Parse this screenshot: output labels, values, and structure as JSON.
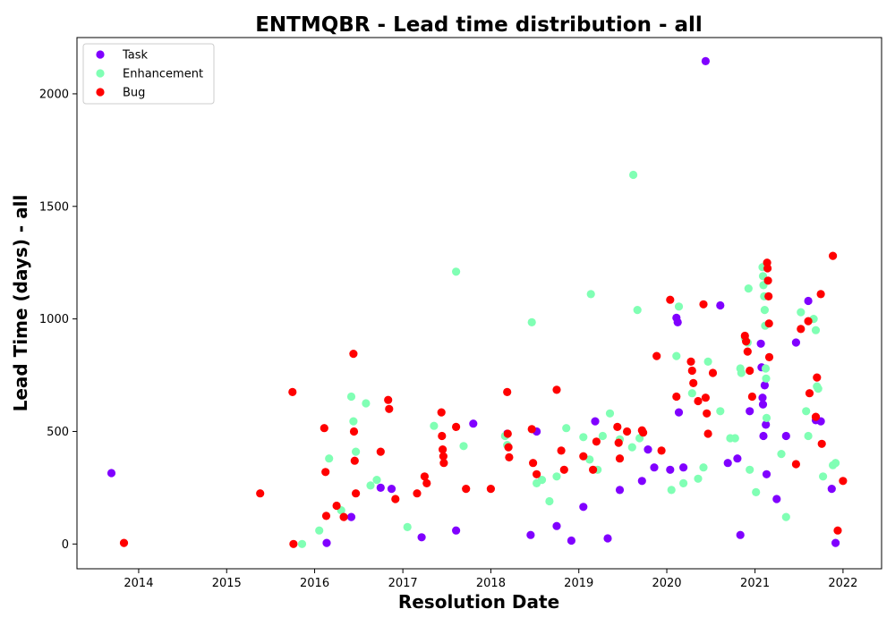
{
  "chart_data": {
    "type": "scatter",
    "title": "ENTMQBR - Lead time distribution - all",
    "xlabel": "Resolution Date",
    "ylabel": "Lead Time (days) - all",
    "x_ticks": [
      "2014",
      "2015",
      "2016",
      "2017",
      "2018",
      "2019",
      "2020",
      "2021",
      "2022"
    ],
    "y_ticks": [
      "0",
      "500",
      "1000",
      "1500",
      "2000"
    ],
    "xlim": [
      "2013-04-20",
      "2022-06-10"
    ],
    "ylim": [
      -110,
      2250
    ],
    "grid": false,
    "legend_position": "top-left",
    "series": [
      {
        "name": "Task",
        "color": "#8000ff",
        "points": [
          [
            "2013-09-10",
            315
          ],
          [
            "2016-02-20",
            5
          ],
          [
            "2016-06-01",
            120
          ],
          [
            "2016-10-01",
            250
          ],
          [
            "2016-11-15",
            245
          ],
          [
            "2017-03-20",
            30
          ],
          [
            "2017-08-10",
            60
          ],
          [
            "2017-10-20",
            535
          ],
          [
            "2018-03-10",
            490
          ],
          [
            "2018-06-15",
            40
          ],
          [
            "2018-07-10",
            500
          ],
          [
            "2018-10-01",
            80
          ],
          [
            "2019-01-20",
            165
          ],
          [
            "2019-03-10",
            545
          ],
          [
            "2019-06-20",
            240
          ],
          [
            "2019-09-20",
            280
          ],
          [
            "2019-10-15",
            420
          ],
          [
            "2019-11-10",
            340
          ],
          [
            "2020-01-15",
            330
          ],
          [
            "2020-02-10",
            1005
          ],
          [
            "2020-02-15",
            985
          ],
          [
            "2020-02-20",
            585
          ],
          [
            "2020-03-10",
            340
          ],
          [
            "2020-06-10",
            2145
          ],
          [
            "2020-08-10",
            1060
          ],
          [
            "2020-09-10",
            360
          ],
          [
            "2020-10-20",
            380
          ],
          [
            "2020-12-10",
            590
          ],
          [
            "2021-01-25",
            890
          ],
          [
            "2021-01-28",
            785
          ],
          [
            "2021-02-01",
            650
          ],
          [
            "2021-02-03",
            620
          ],
          [
            "2021-02-05",
            480
          ],
          [
            "2021-02-10",
            705
          ],
          [
            "2021-02-15",
            530
          ],
          [
            "2021-02-18",
            310
          ],
          [
            "2021-04-01",
            200
          ],
          [
            "2021-05-10",
            480
          ],
          [
            "2021-06-20",
            895
          ],
          [
            "2021-08-10",
            1080
          ],
          [
            "2021-09-10",
            550
          ],
          [
            "2021-10-01",
            545
          ],
          [
            "2021-11-15",
            245
          ],
          [
            "2021-12-01",
            5
          ],
          [
            "2020-11-01",
            40
          ],
          [
            "2019-05-01",
            25
          ],
          [
            "2018-12-01",
            15
          ]
        ]
      },
      {
        "name": "Enhancement",
        "color": "#80ffb4",
        "points": [
          [
            "2015-11-10",
            0
          ],
          [
            "2016-01-20",
            60
          ],
          [
            "2016-03-01",
            380
          ],
          [
            "2016-04-20",
            150
          ],
          [
            "2016-06-01",
            655
          ],
          [
            "2016-06-10",
            545
          ],
          [
            "2016-06-20",
            410
          ],
          [
            "2016-08-01",
            625
          ],
          [
            "2016-08-20",
            260
          ],
          [
            "2016-09-15",
            285
          ],
          [
            "2017-01-20",
            75
          ],
          [
            "2017-05-10",
            525
          ],
          [
            "2017-08-10",
            1210
          ],
          [
            "2017-09-10",
            435
          ],
          [
            "2018-03-01",
            480
          ],
          [
            "2018-03-10",
            440
          ],
          [
            "2018-06-20",
            985
          ],
          [
            "2018-07-10",
            270
          ],
          [
            "2018-08-01",
            285
          ],
          [
            "2018-10-01",
            300
          ],
          [
            "2018-11-10",
            515
          ],
          [
            "2019-01-20",
            475
          ],
          [
            "2019-02-15",
            375
          ],
          [
            "2019-02-20",
            1110
          ],
          [
            "2019-04-10",
            480
          ],
          [
            "2019-05-10",
            580
          ],
          [
            "2019-06-20",
            465
          ],
          [
            "2019-08-10",
            430
          ],
          [
            "2019-08-15",
            1640
          ],
          [
            "2019-09-01",
            1040
          ],
          [
            "2019-09-10",
            470
          ],
          [
            "2020-01-20",
            240
          ],
          [
            "2020-02-10",
            835
          ],
          [
            "2020-02-20",
            1055
          ],
          [
            "2020-03-10",
            270
          ],
          [
            "2020-04-15",
            670
          ],
          [
            "2020-05-10",
            290
          ],
          [
            "2020-06-01",
            340
          ],
          [
            "2020-06-20",
            810
          ],
          [
            "2020-08-10",
            590
          ],
          [
            "2020-10-10",
            470
          ],
          [
            "2020-11-01",
            780
          ],
          [
            "2020-11-05",
            760
          ],
          [
            "2020-11-20",
            915
          ],
          [
            "2020-12-01",
            895
          ],
          [
            "2020-12-05",
            1135
          ],
          [
            "2020-12-10",
            330
          ],
          [
            "2021-01-05",
            230
          ],
          [
            "2021-02-01",
            1230
          ],
          [
            "2021-02-03",
            1190
          ],
          [
            "2021-02-05",
            1150
          ],
          [
            "2021-02-08",
            1100
          ],
          [
            "2021-02-10",
            1040
          ],
          [
            "2021-02-12",
            970
          ],
          [
            "2021-02-14",
            780
          ],
          [
            "2021-02-16",
            735
          ],
          [
            "2021-02-18",
            560
          ],
          [
            "2021-04-20",
            400
          ],
          [
            "2021-05-10",
            120
          ],
          [
            "2021-07-10",
            1030
          ],
          [
            "2021-08-01",
            590
          ],
          [
            "2021-08-10",
            480
          ],
          [
            "2021-09-01",
            1000
          ],
          [
            "2021-09-10",
            950
          ],
          [
            "2021-09-15",
            700
          ],
          [
            "2021-09-20",
            690
          ],
          [
            "2021-10-10",
            300
          ],
          [
            "2021-11-20",
            350
          ],
          [
            "2021-12-01",
            360
          ],
          [
            "2020-09-20",
            470
          ],
          [
            "2019-03-20",
            330
          ],
          [
            "2018-09-01",
            190
          ]
        ]
      },
      {
        "name": "Bug",
        "color": "#ff0000",
        "points": [
          [
            "2013-11-01",
            5
          ],
          [
            "2015-05-20",
            225
          ],
          [
            "2015-10-01",
            675
          ],
          [
            "2015-10-05",
            0
          ],
          [
            "2016-02-10",
            515
          ],
          [
            "2016-02-15",
            320
          ],
          [
            "2016-02-18",
            125
          ],
          [
            "2016-04-01",
            170
          ],
          [
            "2016-05-01",
            120
          ],
          [
            "2016-06-10",
            845
          ],
          [
            "2016-06-12",
            500
          ],
          [
            "2016-06-15",
            370
          ],
          [
            "2016-06-20",
            225
          ],
          [
            "2016-10-01",
            410
          ],
          [
            "2016-11-01",
            640
          ],
          [
            "2016-11-05",
            600
          ],
          [
            "2016-12-01",
            200
          ],
          [
            "2017-03-01",
            225
          ],
          [
            "2017-04-01",
            300
          ],
          [
            "2017-04-10",
            270
          ],
          [
            "2017-06-10",
            585
          ],
          [
            "2017-06-12",
            480
          ],
          [
            "2017-06-15",
            420
          ],
          [
            "2017-06-18",
            390
          ],
          [
            "2017-06-20",
            360
          ],
          [
            "2017-08-10",
            520
          ],
          [
            "2017-09-20",
            245
          ],
          [
            "2018-01-01",
            245
          ],
          [
            "2018-03-10",
            675
          ],
          [
            "2018-03-12",
            490
          ],
          [
            "2018-03-15",
            430
          ],
          [
            "2018-03-18",
            385
          ],
          [
            "2018-06-20",
            510
          ],
          [
            "2018-06-25",
            360
          ],
          [
            "2018-07-10",
            310
          ],
          [
            "2018-10-01",
            685
          ],
          [
            "2018-10-20",
            415
          ],
          [
            "2018-11-01",
            330
          ],
          [
            "2019-01-20",
            390
          ],
          [
            "2019-03-01",
            330
          ],
          [
            "2019-03-15",
            455
          ],
          [
            "2019-06-10",
            520
          ],
          [
            "2019-06-15",
            450
          ],
          [
            "2019-06-20",
            380
          ],
          [
            "2019-07-20",
            500
          ],
          [
            "2019-09-20",
            505
          ],
          [
            "2019-09-25",
            495
          ],
          [
            "2019-11-20",
            835
          ],
          [
            "2019-12-10",
            415
          ],
          [
            "2020-01-15",
            1085
          ],
          [
            "2020-02-10",
            655
          ],
          [
            "2020-04-10",
            810
          ],
          [
            "2020-04-15",
            770
          ],
          [
            "2020-04-20",
            715
          ],
          [
            "2020-05-10",
            635
          ],
          [
            "2020-06-01",
            1065
          ],
          [
            "2020-06-10",
            650
          ],
          [
            "2020-06-15",
            580
          ],
          [
            "2020-06-20",
            490
          ],
          [
            "2020-07-10",
            760
          ],
          [
            "2020-11-20",
            925
          ],
          [
            "2020-11-25",
            900
          ],
          [
            "2020-12-01",
            855
          ],
          [
            "2020-12-10",
            770
          ],
          [
            "2020-12-20",
            655
          ],
          [
            "2021-02-20",
            1250
          ],
          [
            "2021-02-22",
            1225
          ],
          [
            "2021-02-24",
            1170
          ],
          [
            "2021-02-26",
            1100
          ],
          [
            "2021-02-28",
            980
          ],
          [
            "2021-03-01",
            830
          ],
          [
            "2021-06-20",
            355
          ],
          [
            "2021-07-10",
            955
          ],
          [
            "2021-08-10",
            990
          ],
          [
            "2021-08-15",
            670
          ],
          [
            "2021-09-10",
            565
          ],
          [
            "2021-09-15",
            740
          ],
          [
            "2021-10-01",
            1110
          ],
          [
            "2021-10-05",
            445
          ],
          [
            "2021-11-20",
            1280
          ],
          [
            "2022-01-01",
            280
          ],
          [
            "2021-12-10",
            60
          ]
        ]
      }
    ]
  }
}
